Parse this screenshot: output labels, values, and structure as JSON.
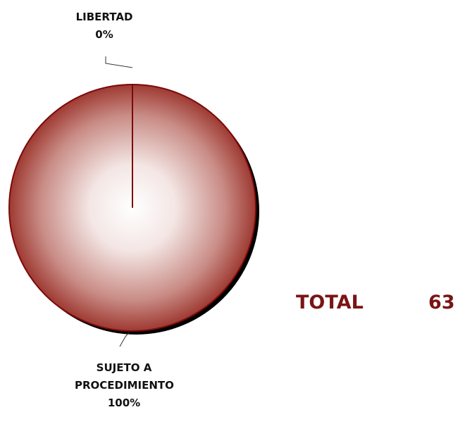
{
  "chart_data": {
    "type": "pie",
    "categories": [
      "LIBERTAD",
      "SUJETO A PROCEDIMIENTO"
    ],
    "values": [
      0,
      100
    ],
    "value_labels": [
      "0%",
      "100%"
    ],
    "color": "#9e3a32",
    "annotations": {
      "total_label": "TOTAL",
      "total_value": 63
    }
  }
}
